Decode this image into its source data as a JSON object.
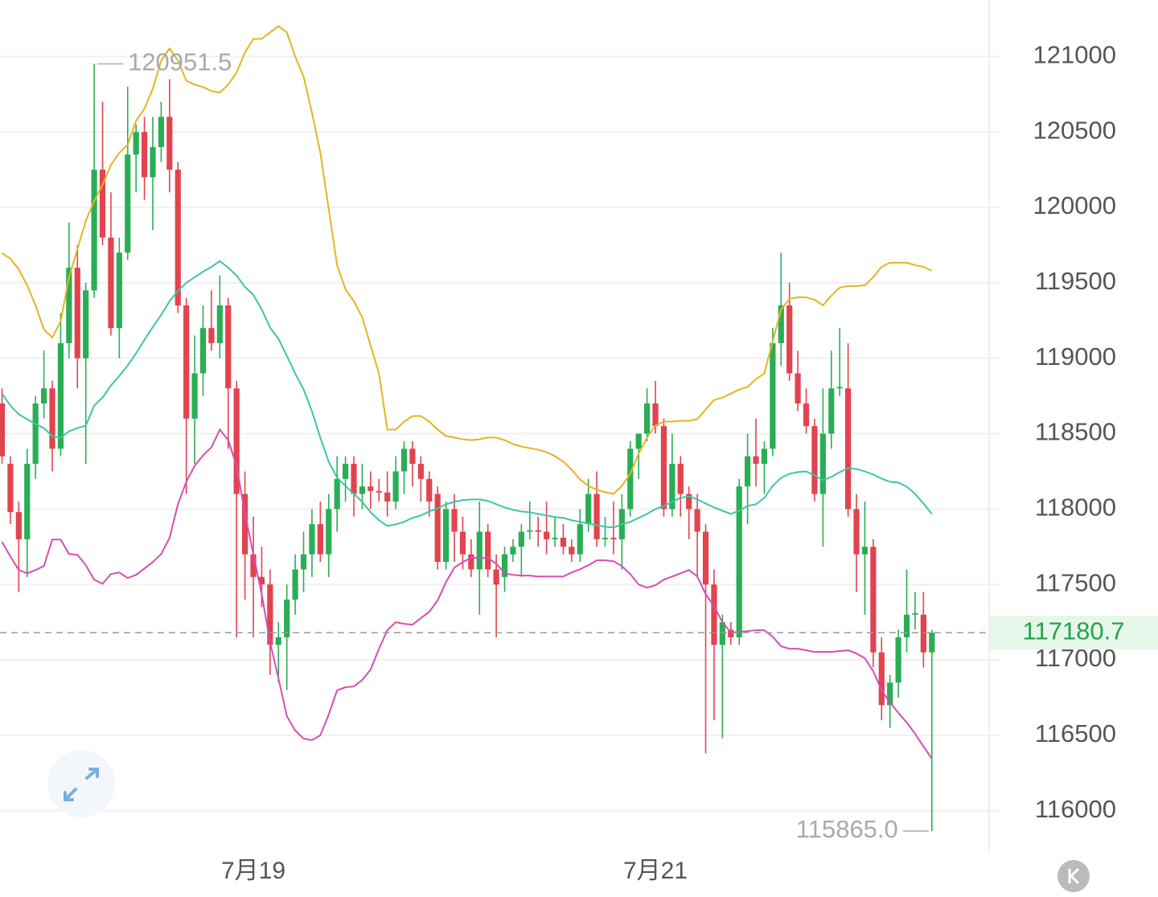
{
  "chart_data": {
    "type": "candlestick",
    "categories": [
      null,
      null,
      null,
      null,
      null,
      null,
      null,
      null,
      null,
      null,
      null,
      null,
      null,
      null,
      null,
      null,
      null,
      null,
      null,
      null,
      null,
      null,
      null,
      null,
      null,
      null,
      null,
      null,
      null,
      null,
      "7月19",
      null,
      null,
      null,
      null,
      null,
      null,
      null,
      null,
      null,
      null,
      null,
      null,
      null,
      null,
      null,
      null,
      null,
      null,
      null,
      null,
      null,
      null,
      null,
      null,
      null,
      null,
      null,
      null,
      null,
      null,
      null,
      null,
      null,
      null,
      null,
      null,
      null,
      null,
      null,
      null,
      null,
      null,
      null,
      null,
      null,
      null,
      null,
      "7月21",
      null,
      null,
      null,
      null,
      null,
      null,
      null,
      null,
      null,
      null,
      null,
      null,
      null,
      null,
      null,
      null,
      null,
      null,
      null,
      null,
      null,
      null,
      null,
      null,
      null,
      null,
      null,
      null,
      null,
      null,
      null,
      null,
      null
    ],
    "candles": {
      "open": [
        118700,
        118300,
        117980,
        117800,
        118300,
        118700,
        118800,
        118400,
        119100,
        119600,
        119000,
        119450,
        120250,
        119800,
        119200,
        119700,
        120350,
        120500,
        120200,
        120400,
        120600,
        120250,
        119350,
        118600,
        118900,
        119200,
        119100,
        119350,
        118800,
        118100,
        117700,
        117550,
        117500,
        117100,
        117150,
        117400,
        117600,
        117700,
        117900,
        117700,
        118000,
        118200,
        118300,
        118100,
        118150,
        118120,
        118110,
        118050,
        118250,
        118400,
        118300,
        118200,
        118100,
        117650,
        118000,
        117850,
        117700,
        117600,
        117850,
        117600,
        117550,
        117700,
        117750,
        117850,
        117860,
        117850,
        117800,
        117810,
        117750,
        117700,
        117900,
        118100,
        117800,
        117810,
        117800,
        118000,
        118400,
        118500,
        118700,
        118550,
        118000,
        118300,
        118100,
        118000,
        117850,
        117500,
        117100,
        117200,
        117150,
        118150,
        118350,
        118300,
        118400,
        119100,
        119350,
        118900,
        118700,
        118550,
        118100,
        118500,
        118800,
        118800,
        118000,
        117700,
        117750,
        117050,
        116700,
        116850,
        117150,
        117300,
        117300,
        117050
      ],
      "high": [
        118800,
        118350,
        118050,
        118400,
        118750,
        119050,
        118850,
        119300,
        119900,
        119750,
        119500,
        120951.5,
        120700,
        120100,
        119800,
        120800,
        120550,
        120600,
        120600,
        120700,
        120850,
        120300,
        119400,
        119150,
        119350,
        119450,
        119550,
        119400,
        118850,
        118250,
        117950,
        117750,
        117600,
        117250,
        117500,
        117700,
        117850,
        118000,
        118050,
        118100,
        118350,
        118350,
        118350,
        118300,
        118250,
        118200,
        118250,
        118350,
        118450,
        118450,
        118350,
        118250,
        118150,
        118050,
        118100,
        117950,
        117800,
        118050,
        117900,
        117700,
        117750,
        117800,
        117900,
        118050,
        117950,
        118050,
        117950,
        117900,
        117800,
        118000,
        118200,
        118250,
        117950,
        118050,
        118100,
        118450,
        118500,
        118800,
        118850,
        118600,
        118500,
        118350,
        118150,
        118100,
        117900,
        117600,
        117300,
        117250,
        118200,
        118500,
        118600,
        118450,
        119200,
        119700,
        119500,
        119050,
        118800,
        118600,
        118800,
        119050,
        119200,
        119100,
        118100,
        118050,
        117800,
        117150,
        116900,
        117200,
        117600,
        117450,
        117450,
        117200
      ],
      "low": [
        118300,
        117900,
        117450,
        117550,
        118200,
        118600,
        118250,
        118350,
        119000,
        118800,
        118300,
        119400,
        119750,
        119150,
        119000,
        119650,
        120100,
        120050,
        119850,
        120300,
        120100,
        119300,
        118100,
        118300,
        118750,
        119050,
        119000,
        118400,
        117150,
        117400,
        117150,
        117350,
        116900,
        116850,
        116800,
        117300,
        117450,
        117550,
        117650,
        117550,
        117850,
        118050,
        117950,
        118000,
        118000,
        118050,
        117950,
        118000,
        118100,
        118150,
        118050,
        117950,
        117600,
        117600,
        117650,
        117600,
        117550,
        117300,
        117550,
        117150,
        117450,
        117650,
        117550,
        117800,
        117750,
        117700,
        117750,
        117700,
        117650,
        117650,
        117850,
        117750,
        117750,
        117700,
        117600,
        117950,
        118200,
        118450,
        118500,
        117950,
        117950,
        117950,
        117800,
        117550,
        116380,
        116600,
        116480,
        117100,
        117100,
        117900,
        118150,
        118100,
        118350,
        118950,
        118850,
        118650,
        118500,
        118050,
        117750,
        118400,
        118750,
        117950,
        117450,
        117300,
        116950,
        116600,
        116550,
        116750,
        117050,
        117200,
        116950,
        115865
      ],
      "close": [
        118350,
        117980,
        117800,
        118300,
        118700,
        118800,
        118400,
        119100,
        119600,
        119000,
        119450,
        120250,
        119800,
        119200,
        119700,
        120350,
        120500,
        120200,
        120400,
        120600,
        120250,
        119350,
        118600,
        118900,
        119200,
        119100,
        119350,
        118800,
        118100,
        117700,
        117550,
        117500,
        117100,
        117150,
        117400,
        117600,
        117700,
        117900,
        117700,
        118000,
        118200,
        118300,
        118100,
        118150,
        118120,
        118110,
        118050,
        118250,
        118400,
        118300,
        118200,
        118050,
        117650,
        118000,
        117850,
        117700,
        117600,
        117850,
        117600,
        117500,
        117700,
        117750,
        117850,
        117860,
        117850,
        117800,
        117810,
        117750,
        117700,
        117900,
        118100,
        117800,
        117810,
        117800,
        118000,
        118400,
        118500,
        118700,
        118550,
        118000,
        118300,
        118100,
        118000,
        117850,
        117500,
        117100,
        117250,
        117150,
        118150,
        118350,
        118300,
        118400,
        119100,
        119350,
        118900,
        118700,
        118550,
        118100,
        118500,
        118800,
        118810,
        118000,
        117700,
        117750,
        117050,
        116700,
        116850,
        117150,
        117300,
        117310,
        117050,
        117180.7
      ]
    },
    "colors": {
      "up": "#2aae55",
      "down": "#e2434f"
    },
    "bands": [
      {
        "color": "#e6b41e",
        "values": [
          119697,
          119660,
          119590,
          119484,
          119351,
          119191,
          119138,
          119245,
          119537,
          119723,
          119910,
          120043,
          120149,
          120282,
          120362,
          120415,
          120574,
          120654,
          120787,
          120973,
          121053,
          120973,
          120840,
          120814,
          120798,
          120771,
          120761,
          120814,
          120894,
          121027,
          121117,
          121117,
          121160,
          121202,
          121160,
          121000,
          120867,
          120628,
          120362,
          119989,
          119617,
          119457,
          119378,
          119271,
          119085,
          118899,
          118527,
          118527,
          118580,
          118617,
          118617,
          118580,
          118527,
          118484,
          118474,
          118463,
          118457,
          118463,
          118474,
          118474,
          118457,
          118431,
          118415,
          118404,
          118394,
          118378,
          118351,
          118314,
          118261,
          118197,
          118154,
          118128,
          118112,
          118101,
          118154,
          118234,
          118367,
          118473,
          118553,
          118580,
          118580,
          118585,
          118585,
          118596,
          118660,
          118723,
          118739,
          118766,
          118793,
          118809,
          118862,
          118899,
          119112,
          119324,
          119394,
          119404,
          119404,
          119388,
          119351,
          119415,
          119468,
          119479,
          119479,
          119484,
          119537,
          119606,
          119633,
          119633,
          119633,
          119617,
          119606,
          119580
        ]
      },
      {
        "color": "#3cc6a4",
        "values": [
          118766,
          118686,
          118628,
          118596,
          118564,
          118537,
          118484,
          118473,
          118516,
          118537,
          118553,
          118686,
          118739,
          118819,
          118883,
          118952,
          119032,
          119122,
          119207,
          119287,
          119378,
          119447,
          119500,
          119537,
          119574,
          119606,
          119644,
          119601,
          119548,
          119473,
          119420,
          119324,
          119202,
          119128,
          119016,
          118899,
          118793,
          118649,
          118473,
          118314,
          118207,
          118154,
          118101,
          118048,
          117979,
          117926,
          117888,
          117899,
          117915,
          117942,
          117958,
          117984,
          118005,
          118032,
          118048,
          118059,
          118064,
          118064,
          118054,
          118032,
          118011,
          117995,
          117984,
          117979,
          117968,
          117958,
          117947,
          117942,
          117926,
          117915,
          117904,
          117894,
          117883,
          117878,
          117899,
          117915,
          117942,
          117968,
          118000,
          118021,
          118048,
          118074,
          118085,
          118064,
          118037,
          118011,
          117989,
          117968,
          117989,
          118021,
          118032,
          118074,
          118154,
          118207,
          118234,
          118245,
          118250,
          118223,
          118191,
          118213,
          118245,
          118271,
          118266,
          118250,
          118229,
          118202,
          118181,
          118176,
          118149,
          118101,
          118037,
          117968
        ]
      },
      {
        "color": "#d54db5",
        "values": [
          117782,
          117686,
          117596,
          117574,
          117596,
          117622,
          117798,
          117798,
          117702,
          117697,
          117628,
          117532,
          117505,
          117569,
          117580,
          117543,
          117564,
          117606,
          117649,
          117702,
          117809,
          118032,
          118181,
          118287,
          118356,
          118410,
          118527,
          118457,
          118287,
          117968,
          117702,
          117436,
          117117,
          116878,
          116628,
          116532,
          116479,
          116468,
          116500,
          116638,
          116798,
          116819,
          116824,
          116867,
          116936,
          117074,
          117197,
          117250,
          117239,
          117234,
          117277,
          117319,
          117394,
          117516,
          117612,
          117649,
          117676,
          117676,
          117676,
          117638,
          117574,
          117564,
          117559,
          117559,
          117553,
          117553,
          117553,
          117553,
          117580,
          117601,
          117628,
          117660,
          117660,
          117654,
          117622,
          117569,
          117500,
          117479,
          117495,
          117532,
          117553,
          117574,
          117596,
          117553,
          117436,
          117356,
          117250,
          117181,
          117186,
          117191,
          117197,
          117197,
          117154,
          117090,
          117074,
          117074,
          117064,
          117053,
          117053,
          117053,
          117059,
          117064,
          117043,
          117011,
          116926,
          116798,
          116718,
          116649,
          116585,
          116511,
          116426,
          116346
        ]
      }
    ],
    "extremes": {
      "high": {
        "value": 120951.5,
        "label": "120951.5"
      },
      "low": {
        "value": 115865,
        "label": "115865.0"
      }
    },
    "ylim": [
      115700,
      121375
    ],
    "yticks": [
      116000,
      116500,
      117000,
      117500,
      118000,
      118500,
      119000,
      119500,
      120000,
      120500,
      121000
    ],
    "grid": true
  }
}
